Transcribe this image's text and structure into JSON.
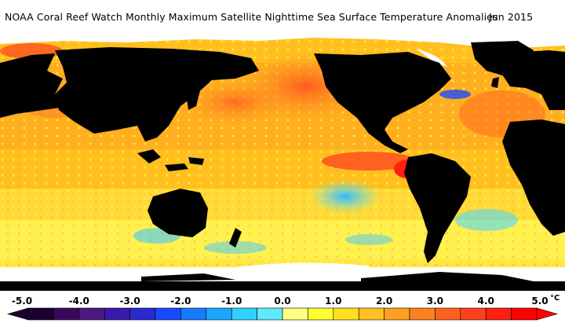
{
  "header": {
    "title": "NOAA Coral Reef Watch Monthly Maximum Satellite Nighttime Sea Surface Temperature Anomalies",
    "date": "Jun 2015"
  },
  "legend": {
    "ticks": [
      "-5.0",
      "-4.0",
      "-3.0",
      "-2.0",
      "-1.0",
      "0.0",
      "1.0",
      "2.0",
      "3.0",
      "4.0",
      "5.0"
    ],
    "unit": "°C",
    "min": -5.0,
    "max": 5.0,
    "colors": [
      "#1a0030",
      "#3a0a5a",
      "#4a1a80",
      "#3a1aa8",
      "#2a2ad0",
      "#1a4aff",
      "#1a7aff",
      "#1aa8ff",
      "#30d0ff",
      "#60e8ff",
      "#ffff80",
      "#ffff30",
      "#ffe020",
      "#ffc020",
      "#ffa020",
      "#ff8020",
      "#ff6020",
      "#ff4020",
      "#ff2010",
      "#ff0000"
    ]
  }
}
